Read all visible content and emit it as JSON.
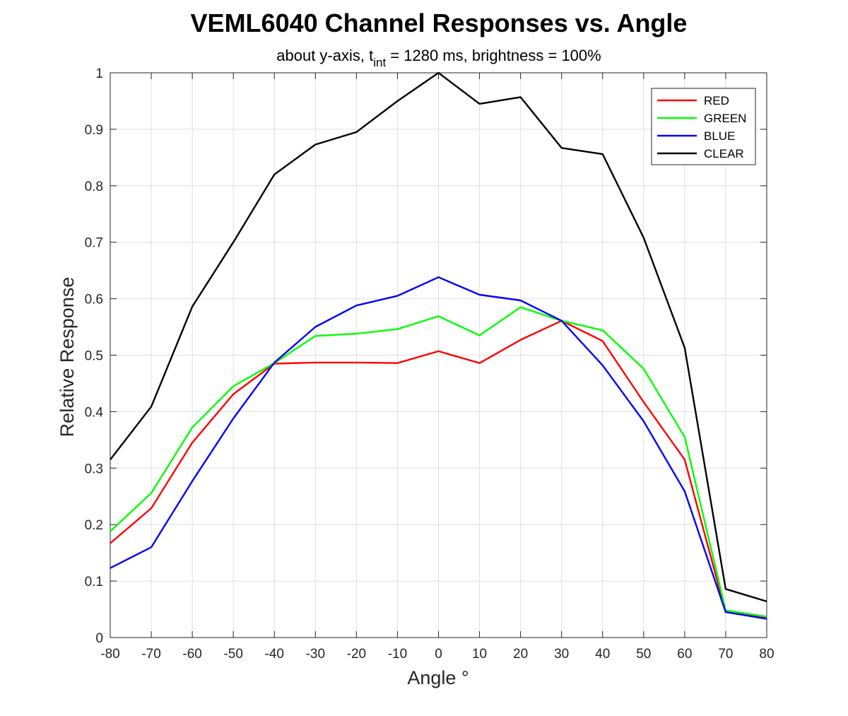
{
  "chart_data": {
    "type": "line",
    "title": "VEML6040 Channel Responses vs. Angle",
    "subtitle": {
      "prefix": "about y-axis, t",
      "subscript": "int",
      "suffix": " = 1280 ms, brightness = 100%"
    },
    "xlabel": "Angle °",
    "ylabel": "Relative Response",
    "xlim": [
      -80,
      80
    ],
    "ylim": [
      0,
      1
    ],
    "xticks": [
      -80,
      -70,
      -60,
      -50,
      -40,
      -30,
      -20,
      -10,
      0,
      10,
      20,
      30,
      40,
      50,
      60,
      70,
      80
    ],
    "yticks": [
      0,
      0.1,
      0.2,
      0.3,
      0.4,
      0.5,
      0.6,
      0.7,
      0.8,
      0.9,
      1
    ],
    "ytick_labels": [
      "0",
      "0.1",
      "0.2",
      "0.3",
      "0.4",
      "0.5",
      "0.6",
      "0.7",
      "0.8",
      "0.9",
      "1"
    ],
    "grid": true,
    "legend_position": "top-right",
    "x": [
      -80,
      -70,
      -60,
      -50,
      -40,
      -30,
      -20,
      -10,
      0,
      10,
      20,
      30,
      40,
      50,
      60,
      70,
      80
    ],
    "series": [
      {
        "name": "RED",
        "color": "#ff0000",
        "values": [
          0.167,
          0.229,
          0.345,
          0.431,
          0.485,
          0.487,
          0.487,
          0.486,
          0.507,
          0.486,
          0.527,
          0.561,
          0.525,
          0.417,
          0.315,
          0.045,
          0.035
        ]
      },
      {
        "name": "GREEN",
        "color": "#00ff00",
        "values": [
          0.188,
          0.256,
          0.372,
          0.445,
          0.486,
          0.534,
          0.538,
          0.546,
          0.569,
          0.535,
          0.585,
          0.561,
          0.544,
          0.476,
          0.355,
          0.048,
          0.037
        ]
      },
      {
        "name": "BLUE",
        "color": "#0000ff",
        "values": [
          0.123,
          0.16,
          0.277,
          0.388,
          0.487,
          0.55,
          0.588,
          0.605,
          0.638,
          0.607,
          0.597,
          0.561,
          0.482,
          0.383,
          0.259,
          0.045,
          0.033
        ]
      },
      {
        "name": "CLEAR",
        "color": "#000000",
        "values": [
          0.315,
          0.409,
          0.586,
          0.7,
          0.82,
          0.873,
          0.895,
          0.95,
          1.0,
          0.945,
          0.957,
          0.867,
          0.856,
          0.708,
          0.513,
          0.086,
          0.064
        ]
      }
    ]
  }
}
